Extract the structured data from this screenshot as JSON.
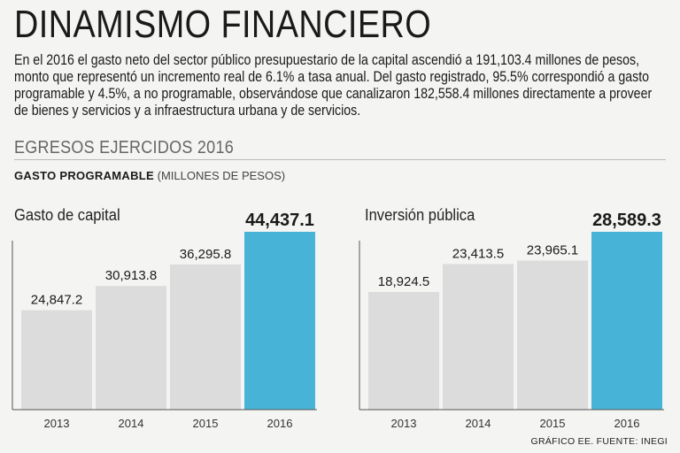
{
  "header": {
    "title": "DINAMISMO FINANCIERO",
    "intro": "En el 2016 el gasto neto del sector público presupuestario de la capital ascendió a 191,103.4 millones de pesos, monto que representó un incremento real de 6.1% a tasa anual. Del gasto registrado, 95.5% correspondió a gasto programable y 4.5%, a no programable, observándose que canalizaron 182,558.4 millones directamente a proveer de bienes y servicios y a infraestructura urbana y de servicios."
  },
  "section": {
    "title": "EGRESOS EJERCIDOS 2016",
    "subtitle_bold": "GASTO PROGRAMABLE",
    "subtitle_unit": "(MILLONES DE PESOS)"
  },
  "colors": {
    "bar_default": "#dcdcdc",
    "bar_highlight": "#47b3d6",
    "axis": "#555555"
  },
  "chart_data": [
    {
      "type": "bar",
      "title": "Gasto de capital",
      "categories": [
        "2013",
        "2014",
        "2015",
        "2016"
      ],
      "values": [
        24847.2,
        30913.8,
        36295.8,
        44437.1
      ],
      "labels": [
        "24,847.2",
        "30,913.8",
        "36,295.8",
        "44,437.1"
      ],
      "highlight_index": 3,
      "ylim": [
        0,
        48000
      ],
      "xlabel": "",
      "ylabel": ""
    },
    {
      "type": "bar",
      "title": "Inversión pública",
      "categories": [
        "2013",
        "2014",
        "2015",
        "2016"
      ],
      "values": [
        18924.5,
        23413.5,
        23965.1,
        28589.3
      ],
      "labels": [
        "18,924.5",
        "23,413.5",
        "23,965.1",
        "28,589.3"
      ],
      "highlight_index": 3,
      "ylim": [
        0,
        31000
      ],
      "xlabel": "",
      "ylabel": ""
    }
  ],
  "footer": {
    "source": "GRÁFICO EE. FUENTE: INEGI"
  }
}
